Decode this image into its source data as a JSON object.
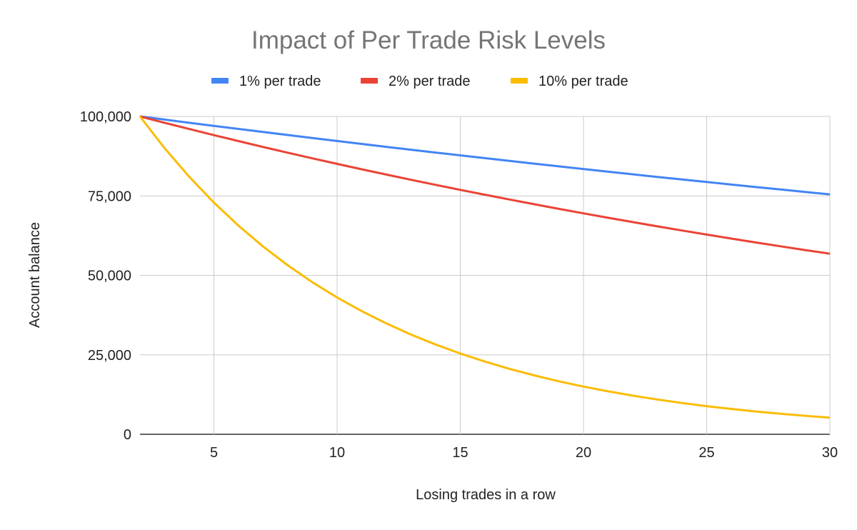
{
  "chart_data": {
    "type": "line",
    "title": "Impact of Per Trade Risk Levels",
    "xlabel": "Losing trades in a row",
    "ylabel": "Account balance",
    "xlim": [
      2,
      30
    ],
    "ylim": [
      0,
      100000
    ],
    "x_ticks": [
      5,
      10,
      15,
      20,
      25,
      30
    ],
    "y_ticks": [
      0,
      25000,
      50000,
      75000,
      100000
    ],
    "y_tick_labels": [
      "0",
      "25,000",
      "50,000",
      "75,000",
      "100,000"
    ],
    "grid": true,
    "legend_position": "top",
    "x": [
      2,
      3,
      4,
      5,
      6,
      7,
      8,
      9,
      10,
      11,
      12,
      13,
      14,
      15,
      16,
      17,
      18,
      19,
      20,
      21,
      22,
      23,
      24,
      25,
      26,
      27,
      28,
      29,
      30
    ],
    "series": [
      {
        "name": "1% per trade",
        "color": "#4285f4",
        "values": [
          100000,
          99000,
          98010,
          97030,
          96060,
          95099,
          94148,
          93207,
          92274,
          91352,
          90438,
          89534,
          88638,
          87752,
          86875,
          86006,
          85146,
          84294,
          83451,
          82617,
          81791,
          80973,
          80163,
          79361,
          78568,
          77782,
          77004,
          76234,
          75472
        ]
      },
      {
        "name": "2% per trade",
        "color": "#ea4335",
        "values": [
          100000,
          98000,
          96040,
          94119,
          92237,
          90392,
          88584,
          86813,
          85076,
          83375,
          81707,
          80073,
          78472,
          76902,
          75364,
          73857,
          72380,
          70932,
          69514,
          68123,
          66761,
          65426,
          64117,
          62835,
          61578,
          60346,
          59140,
          57957,
          56798
        ]
      },
      {
        "name": "10% per trade",
        "color": "#fbbc04",
        "values": [
          100000,
          90000,
          81000,
          72900,
          65610,
          59049,
          53144,
          47830,
          43047,
          38742,
          34868,
          31381,
          28243,
          25419,
          22877,
          20589,
          18530,
          16677,
          15009,
          13509,
          12158,
          10942,
          9848,
          8863,
          7977,
          7179,
          6461,
          5815,
          5233
        ]
      }
    ]
  }
}
